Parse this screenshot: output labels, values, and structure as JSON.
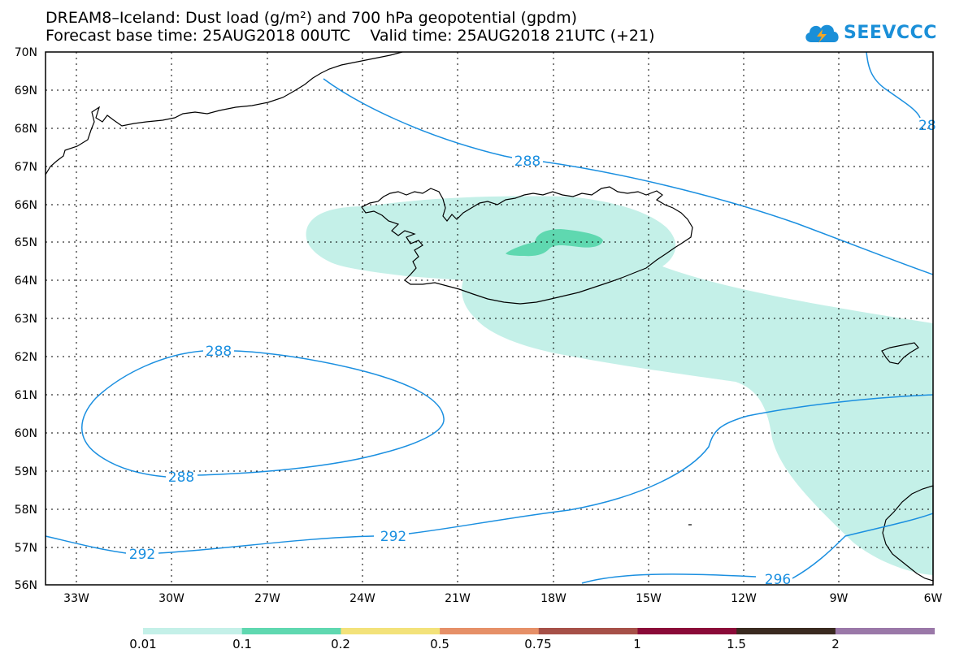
{
  "title_line1": "DREAM8–Iceland: Dust load (g/m²) and 700 hPa geopotential (gpdm)",
  "title_line2": "Forecast base time: 25AUG2018 00UTC    Valid time: 25AUG2018 21UTC (+21)",
  "logo_text": "SEEVCCC",
  "lat_labels": [
    "70N",
    "69N",
    "68N",
    "67N",
    "66N",
    "65N",
    "64N",
    "63N",
    "62N",
    "61N",
    "60N",
    "59N",
    "58N",
    "57N",
    "56N"
  ],
  "lon_labels": [
    "33W",
    "30W",
    "27W",
    "24W",
    "21W",
    "18W",
    "15W",
    "12W",
    "9W",
    "6W"
  ],
  "contour_labels": [
    "288",
    "288",
    "288",
    "28",
    "292",
    "292",
    "296"
  ],
  "colorbar": {
    "labels": [
      "0.01",
      "0.1",
      "0.2",
      "0.5",
      "0.75",
      "1",
      "1.5",
      "2"
    ],
    "colors": [
      "#c4f0e8",
      "#5fd8b0",
      "#f3e27a",
      "#e69068",
      "#a65048",
      "#8a0a38",
      "#3a2a20",
      "#9a78a8"
    ]
  },
  "colors": {
    "contour": "#1a8fe0",
    "dust_low": "#c4f0e8",
    "dust_mid": "#5fd8b0",
    "coast": "#000000"
  }
}
